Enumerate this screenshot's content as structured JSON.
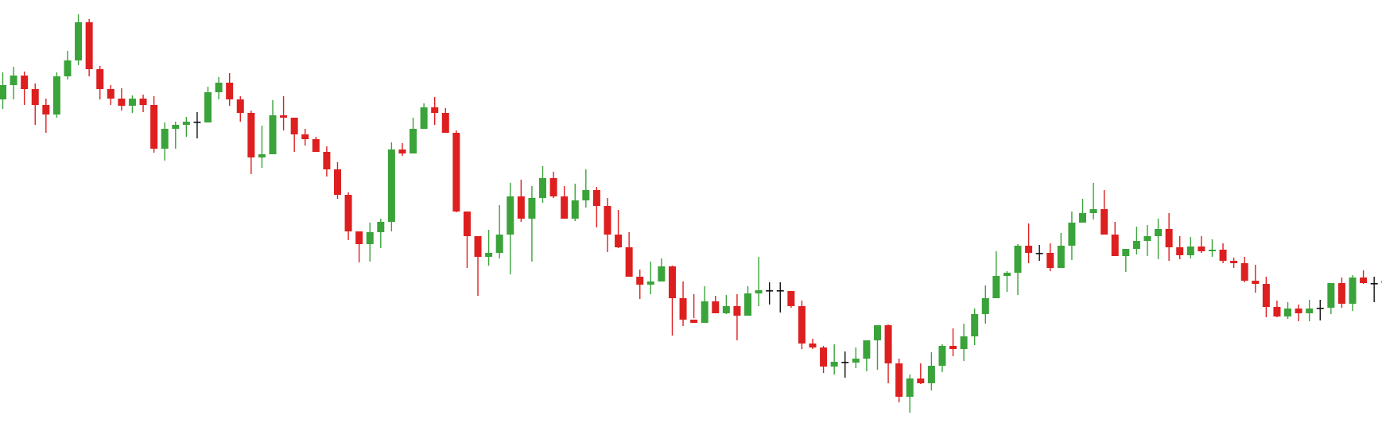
{
  "colors": {
    "up": "#3aa33a",
    "down": "#de1f1f",
    "doji": "#111111",
    "background": "#ffffff"
  },
  "chart_data": {
    "type": "candlestick",
    "title": "",
    "xlabel": "",
    "ylabel": "",
    "grid": false,
    "axes_visible": false,
    "ylim": [
      0,
      537
    ],
    "ohlc": [
      [
        412,
        430,
        446,
        400
      ],
      [
        430,
        442,
        453,
        412
      ],
      [
        442,
        425,
        447,
        405
      ],
      [
        425,
        405,
        432,
        380
      ],
      [
        405,
        393,
        413,
        370
      ],
      [
        393,
        441,
        446,
        389
      ],
      [
        441,
        461,
        473,
        437
      ],
      [
        461,
        509,
        519,
        455
      ],
      [
        509,
        450,
        513,
        441
      ],
      [
        450,
        425,
        454,
        412
      ],
      [
        425,
        413,
        430,
        405
      ],
      [
        413,
        404,
        426,
        398
      ],
      [
        404,
        413,
        417,
        395
      ],
      [
        413,
        405,
        418,
        396
      ],
      [
        405,
        350,
        416,
        345
      ],
      [
        350,
        375,
        383,
        335
      ],
      [
        375,
        380,
        384,
        350
      ],
      [
        380,
        384,
        390,
        365
      ],
      [
        384,
        383,
        396,
        363
      ],
      [
        383,
        421,
        428,
        383
      ],
      [
        421,
        433,
        440,
        412
      ],
      [
        433,
        412,
        445,
        404
      ],
      [
        412,
        395,
        416,
        384
      ],
      [
        395,
        339,
        398,
        318
      ],
      [
        339,
        343,
        379,
        326
      ],
      [
        343,
        392,
        411,
        345
      ],
      [
        392,
        389,
        416,
        373
      ],
      [
        389,
        368,
        379,
        346
      ],
      [
        368,
        362,
        375,
        354
      ],
      [
        362,
        346,
        365,
        346
      ],
      [
        346,
        324,
        353,
        315
      ],
      [
        324,
        292,
        333,
        287
      ],
      [
        292,
        246,
        295,
        235
      ],
      [
        246,
        230,
        245,
        207
      ],
      [
        230,
        245,
        257,
        208
      ],
      [
        245,
        258,
        262,
        225
      ],
      [
        258,
        349,
        358,
        246
      ],
      [
        349,
        344,
        357,
        341
      ],
      [
        344,
        375,
        389,
        370
      ],
      [
        375,
        402,
        407,
        382
      ],
      [
        402,
        395,
        415,
        380
      ],
      [
        395,
        370,
        401,
        370
      ],
      [
        370,
        271,
        373,
        270
      ],
      [
        271,
        240,
        271,
        200
      ],
      [
        240,
        214,
        239,
        165
      ],
      [
        214,
        219,
        248,
        203
      ],
      [
        219,
        242,
        279,
        212
      ],
      [
        242,
        290,
        307,
        192
      ],
      [
        290,
        262,
        311,
        258
      ],
      [
        262,
        288,
        303,
        208
      ],
      [
        288,
        313,
        328,
        282
      ],
      [
        313,
        290,
        321,
        288
      ],
      [
        290,
        262,
        303,
        279
      ],
      [
        262,
        285,
        306,
        259
      ],
      [
        285,
        298,
        324,
        276
      ],
      [
        298,
        278,
        302,
        251
      ],
      [
        278,
        242,
        288,
        220
      ],
      [
        242,
        226,
        273,
        225
      ],
      [
        226,
        189,
        245,
        190
      ],
      [
        189,
        179,
        198,
        161
      ],
      [
        179,
        183,
        208,
        167
      ],
      [
        183,
        202,
        212,
        190
      ],
      [
        202,
        162,
        203,
        115
      ],
      [
        162,
        135,
        183,
        127
      ],
      [
        135,
        131,
        167,
        137
      ],
      [
        131,
        158,
        177,
        145
      ],
      [
        158,
        143,
        165,
        143
      ],
      [
        143,
        152,
        166,
        142
      ],
      [
        152,
        140,
        167,
        109
      ],
      [
        140,
        168,
        177,
        151
      ],
      [
        168,
        172,
        214,
        152
      ],
      [
        172,
        172,
        182,
        154
      ],
      [
        172,
        171,
        182,
        144
      ],
      [
        171,
        152,
        162,
        150
      ],
      [
        152,
        105,
        159,
        98
      ],
      [
        105,
        100,
        111,
        98
      ],
      [
        100,
        76,
        102,
        68
      ],
      [
        76,
        82,
        104,
        66
      ],
      [
        82,
        81,
        95,
        62
      ],
      [
        81,
        86,
        100,
        74
      ],
      [
        86,
        109,
        109,
        70
      ],
      [
        109,
        128,
        117,
        72
      ],
      [
        128,
        80,
        129,
        55
      ],
      [
        80,
        38,
        86,
        31
      ],
      [
        38,
        61,
        66,
        18
      ],
      [
        61,
        55,
        80,
        54
      ],
      [
        55,
        77,
        94,
        46
      ],
      [
        77,
        102,
        104,
        69
      ],
      [
        102,
        98,
        124,
        89
      ],
      [
        98,
        114,
        130,
        83
      ],
      [
        114,
        142,
        149,
        103
      ],
      [
        142,
        162,
        178,
        130
      ],
      [
        162,
        190,
        221,
        162
      ],
      [
        190,
        194,
        196,
        170
      ],
      [
        194,
        228,
        230,
        166
      ],
      [
        228,
        219,
        256,
        206
      ],
      [
        219,
        219,
        229,
        209
      ],
      [
        219,
        200,
        231,
        196
      ],
      [
        200,
        228,
        244,
        200
      ],
      [
        228,
        257,
        271,
        210
      ],
      [
        257,
        269,
        287,
        261
      ],
      [
        269,
        274,
        307,
        261
      ],
      [
        274,
        242,
        298,
        242
      ],
      [
        242,
        215,
        258,
        215
      ],
      [
        215,
        224,
        224,
        195
      ],
      [
        224,
        234,
        252,
        217
      ],
      [
        234,
        240,
        254,
        215
      ],
      [
        240,
        249,
        262,
        211
      ],
      [
        249,
        226,
        269,
        209
      ],
      [
        226,
        216,
        240,
        211
      ],
      [
        216,
        227,
        239,
        212
      ],
      [
        227,
        221,
        240,
        219
      ],
      [
        221,
        223,
        236,
        214
      ],
      [
        223,
        209,
        231,
        206
      ],
      [
        209,
        206,
        213,
        200
      ],
      [
        206,
        184,
        214,
        182
      ],
      [
        184,
        180,
        204,
        169
      ],
      [
        180,
        151,
        189,
        138
      ],
      [
        151,
        139,
        159,
        138
      ],
      [
        139,
        149,
        157,
        136
      ],
      [
        149,
        143,
        154,
        133
      ],
      [
        143,
        149,
        160,
        133
      ],
      [
        149,
        150,
        160,
        134
      ],
      [
        150,
        181,
        181,
        142
      ],
      [
        181,
        155,
        188,
        150
      ],
      [
        155,
        188,
        191,
        146
      ],
      [
        188,
        181,
        197,
        180
      ],
      [
        181,
        181,
        189,
        157
      ],
      [
        181,
        184,
        189,
        157
      ],
      [
        184,
        198,
        206,
        179
      ],
      [
        198,
        232,
        241,
        195
      ],
      [
        232,
        238,
        242,
        222
      ],
      [
        238,
        236,
        243,
        222
      ],
      [
        236,
        257,
        261,
        200
      ],
      [
        257,
        270,
        285,
        249
      ],
      [
        270,
        240,
        274,
        240
      ],
      [
        240,
        232,
        244,
        220
      ],
      [
        232,
        199,
        235,
        194
      ],
      [
        199,
        196,
        221,
        192
      ],
      [
        196,
        211,
        226,
        183
      ],
      [
        211,
        241,
        246,
        199
      ],
      [
        241,
        279,
        288,
        231
      ],
      [
        279,
        290,
        295,
        273
      ],
      [
        290,
        305,
        314,
        300
      ],
      [
        305,
        313,
        321,
        296
      ],
      [
        313,
        304,
        323,
        292
      ],
      [
        304,
        271,
        302,
        256
      ],
      [
        271,
        265,
        277,
        254
      ],
      [
        265,
        239,
        266,
        237
      ],
      [
        239,
        240,
        244,
        224
      ],
      [
        240,
        264,
        288,
        236
      ],
      [
        264,
        284,
        290,
        254
      ],
      [
        284,
        299,
        299,
        271
      ],
      [
        299,
        270,
        305,
        250
      ],
      [
        270,
        303,
        314,
        265
      ],
      [
        303,
        297,
        317,
        279
      ],
      [
        297,
        325,
        328,
        287
      ],
      [
        325,
        280,
        309,
        278
      ],
      [
        280,
        229,
        279,
        181
      ]
    ]
  }
}
